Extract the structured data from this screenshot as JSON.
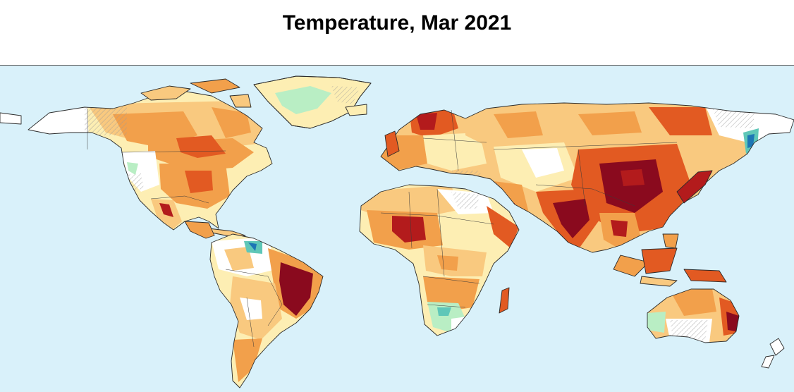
{
  "title": "Temperature, Mar 2021",
  "colors": {
    "ocean": "#d9f1fa",
    "no_data": "#ffffff",
    "near_normal_warm": "#fdeeb3",
    "warm": "#f9c97f",
    "warmer": "#f2a04b",
    "hot": "#e25a22",
    "very_hot": "#b31b1c",
    "record_hot": "#8a0a1e",
    "cool": "#b9eec4",
    "cold": "#5fc7b8",
    "very_cold": "#1d76b5",
    "coastline": "#2b2b2b"
  },
  "map": {
    "projection": "equirectangular-world",
    "hatched_regions_present": true
  }
}
